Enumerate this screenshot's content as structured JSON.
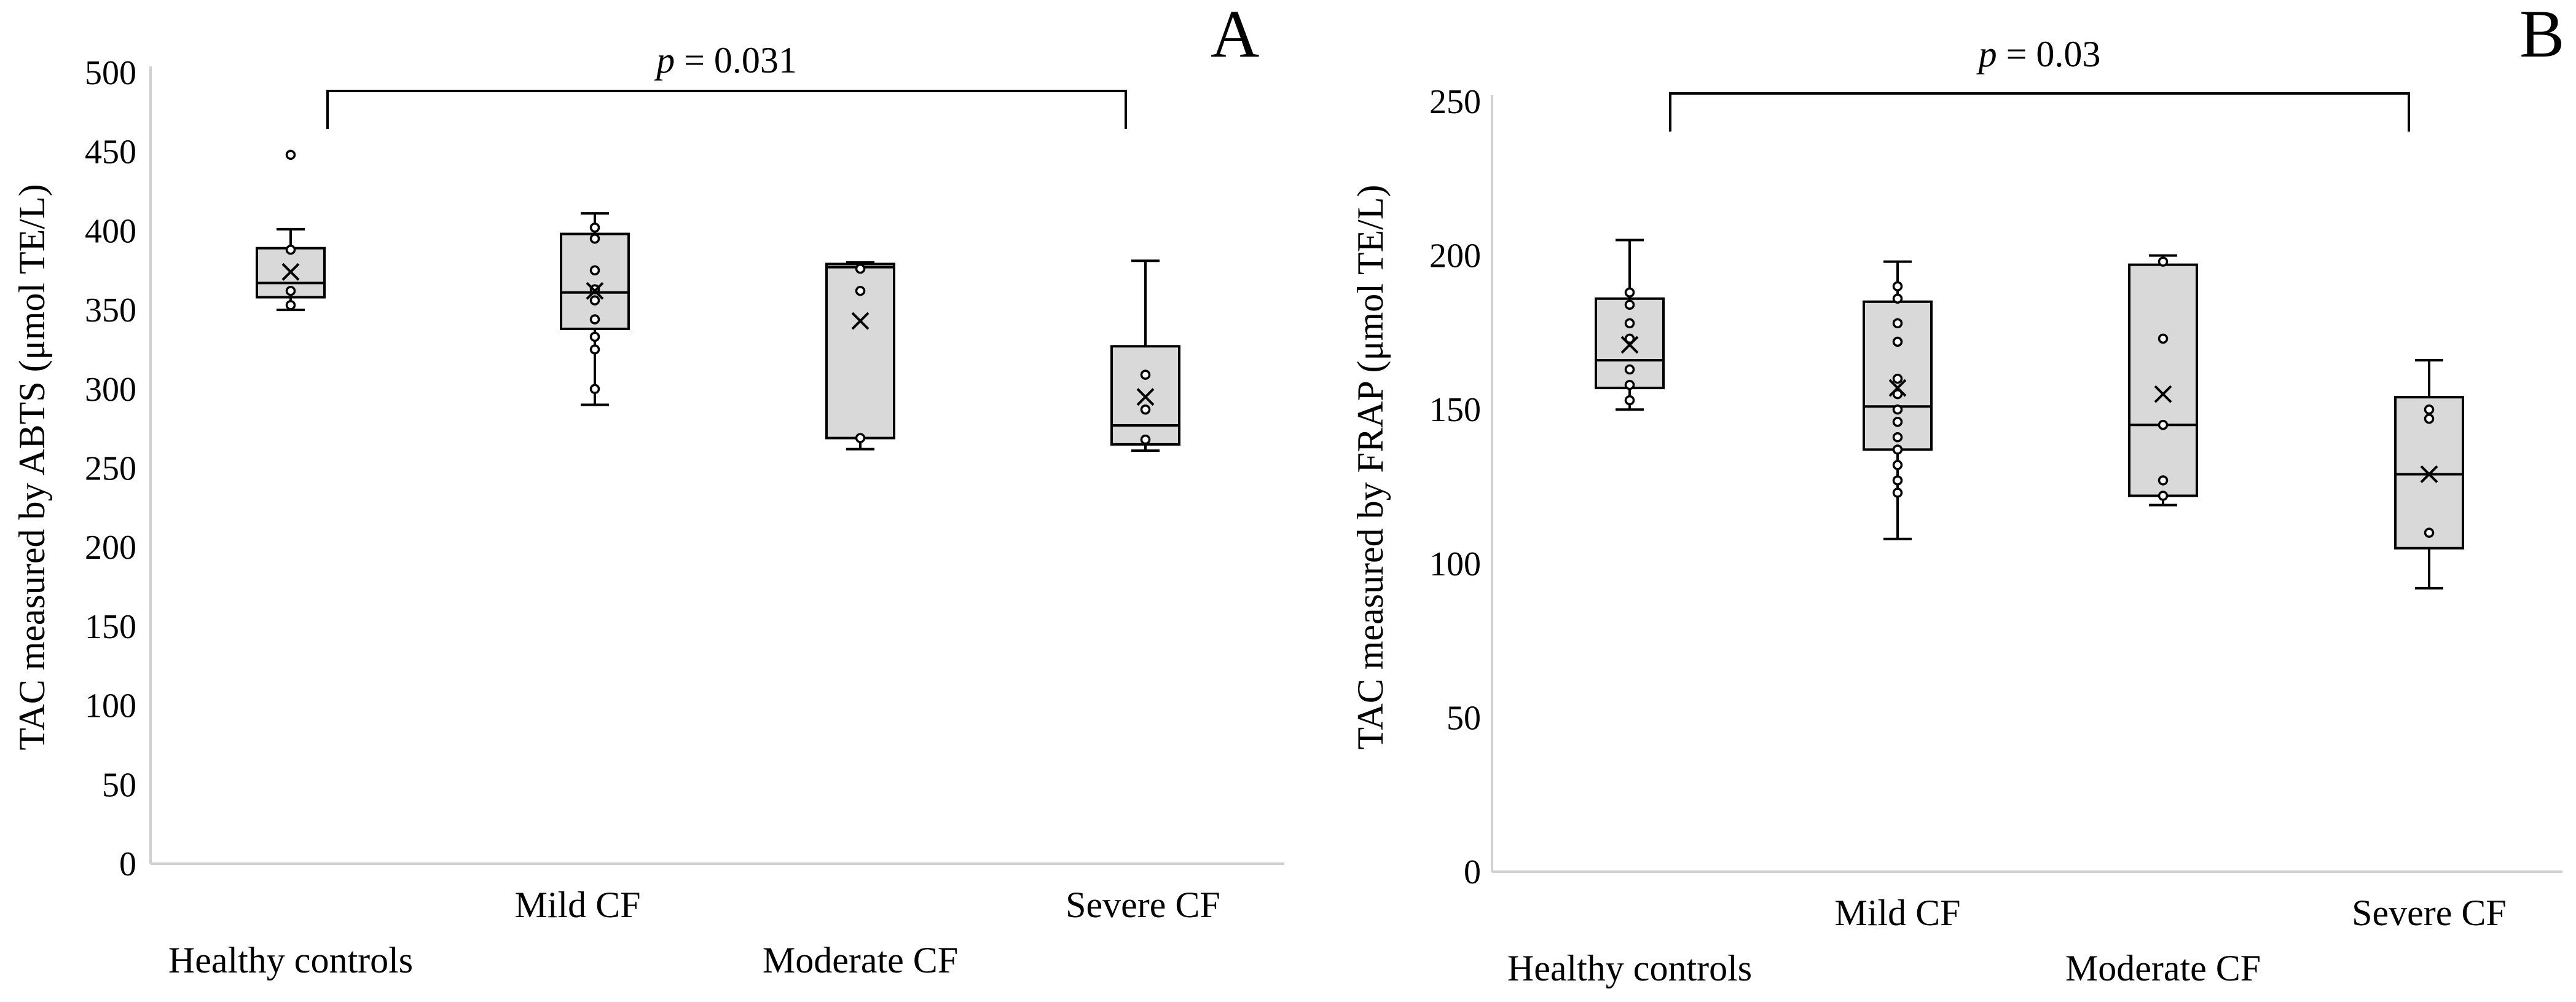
{
  "chart_data": [
    {
      "type": "box",
      "panel": "A",
      "title": "",
      "ylabel": "TAC measured by ABTS (μmol TE/L)",
      "xlabel": "",
      "ylim": [
        0,
        500
      ],
      "yticks": [
        0,
        50,
        100,
        150,
        200,
        250,
        300,
        350,
        400,
        450,
        500
      ],
      "categories": [
        "Healthy controls",
        "Mild CF",
        "Moderate CF",
        "Severe CF"
      ],
      "significance": {
        "label_p": "p",
        "label_value": "= 0.031",
        "from": "Healthy controls",
        "to": "Severe CF"
      },
      "groups": [
        {
          "name": "Healthy controls",
          "whisker_low": 350,
          "q1": 358,
          "median": 367,
          "q3": 389,
          "whisker_high": 401,
          "mean": 374,
          "points": [
            353,
            362,
            388
          ],
          "outliers": [
            448
          ]
        },
        {
          "name": "Mild CF",
          "whisker_low": 290,
          "q1": 338,
          "median": 361,
          "q3": 398,
          "whisker_high": 411,
          "mean": 362,
          "points": [
            300,
            325,
            333,
            344,
            356,
            363,
            375,
            395,
            402
          ],
          "outliers": []
        },
        {
          "name": "Moderate CF",
          "whisker_low": 262,
          "q1": 269,
          "median": 377,
          "q3": 379,
          "whisker_high": 380,
          "mean": 343,
          "points": [
            269,
            362,
            376
          ],
          "outliers": []
        },
        {
          "name": "Severe CF",
          "whisker_low": 261,
          "q1": 265,
          "median": 277,
          "q3": 327,
          "whisker_high": 381,
          "mean": 295,
          "points": [
            268,
            287,
            309
          ],
          "outliers": []
        }
      ]
    },
    {
      "type": "box",
      "panel": "B",
      "title": "",
      "ylabel": "TAC measured by FRAP (μmol TE/L)",
      "xlabel": "",
      "ylim": [
        0,
        250
      ],
      "yticks": [
        0,
        50,
        100,
        150,
        200,
        250
      ],
      "categories": [
        "Healthy controls",
        "Mild CF",
        "Moderate CF",
        "Severe CF"
      ],
      "significance": {
        "label_p": "p",
        "label_value": "= 0.03",
        "from": "Healthy controls",
        "to": "Severe CF"
      },
      "groups": [
        {
          "name": "Healthy controls",
          "whisker_low": 150,
          "q1": 157,
          "median": 166,
          "q3": 186,
          "whisker_high": 205,
          "mean": 171,
          "points": [
            153,
            158,
            163,
            173,
            178,
            184,
            188
          ],
          "outliers": []
        },
        {
          "name": "Mild CF",
          "whisker_low": 108,
          "q1": 137,
          "median": 151,
          "q3": 185,
          "whisker_high": 198,
          "mean": 157,
          "points": [
            123,
            127,
            132,
            137,
            141,
            146,
            150,
            155,
            160,
            172,
            178,
            186,
            190
          ],
          "outliers": []
        },
        {
          "name": "Moderate CF",
          "whisker_low": 119,
          "q1": 122,
          "median": 145,
          "q3": 197,
          "whisker_high": 200,
          "mean": 155,
          "points": [
            122,
            127,
            145,
            173,
            198
          ],
          "outliers": []
        },
        {
          "name": "Severe CF",
          "whisker_low": 92,
          "q1": 105,
          "median": 129,
          "q3": 154,
          "whisker_high": 166,
          "mean": 129,
          "points": [
            110,
            147,
            150
          ],
          "outliers": []
        }
      ]
    }
  ]
}
